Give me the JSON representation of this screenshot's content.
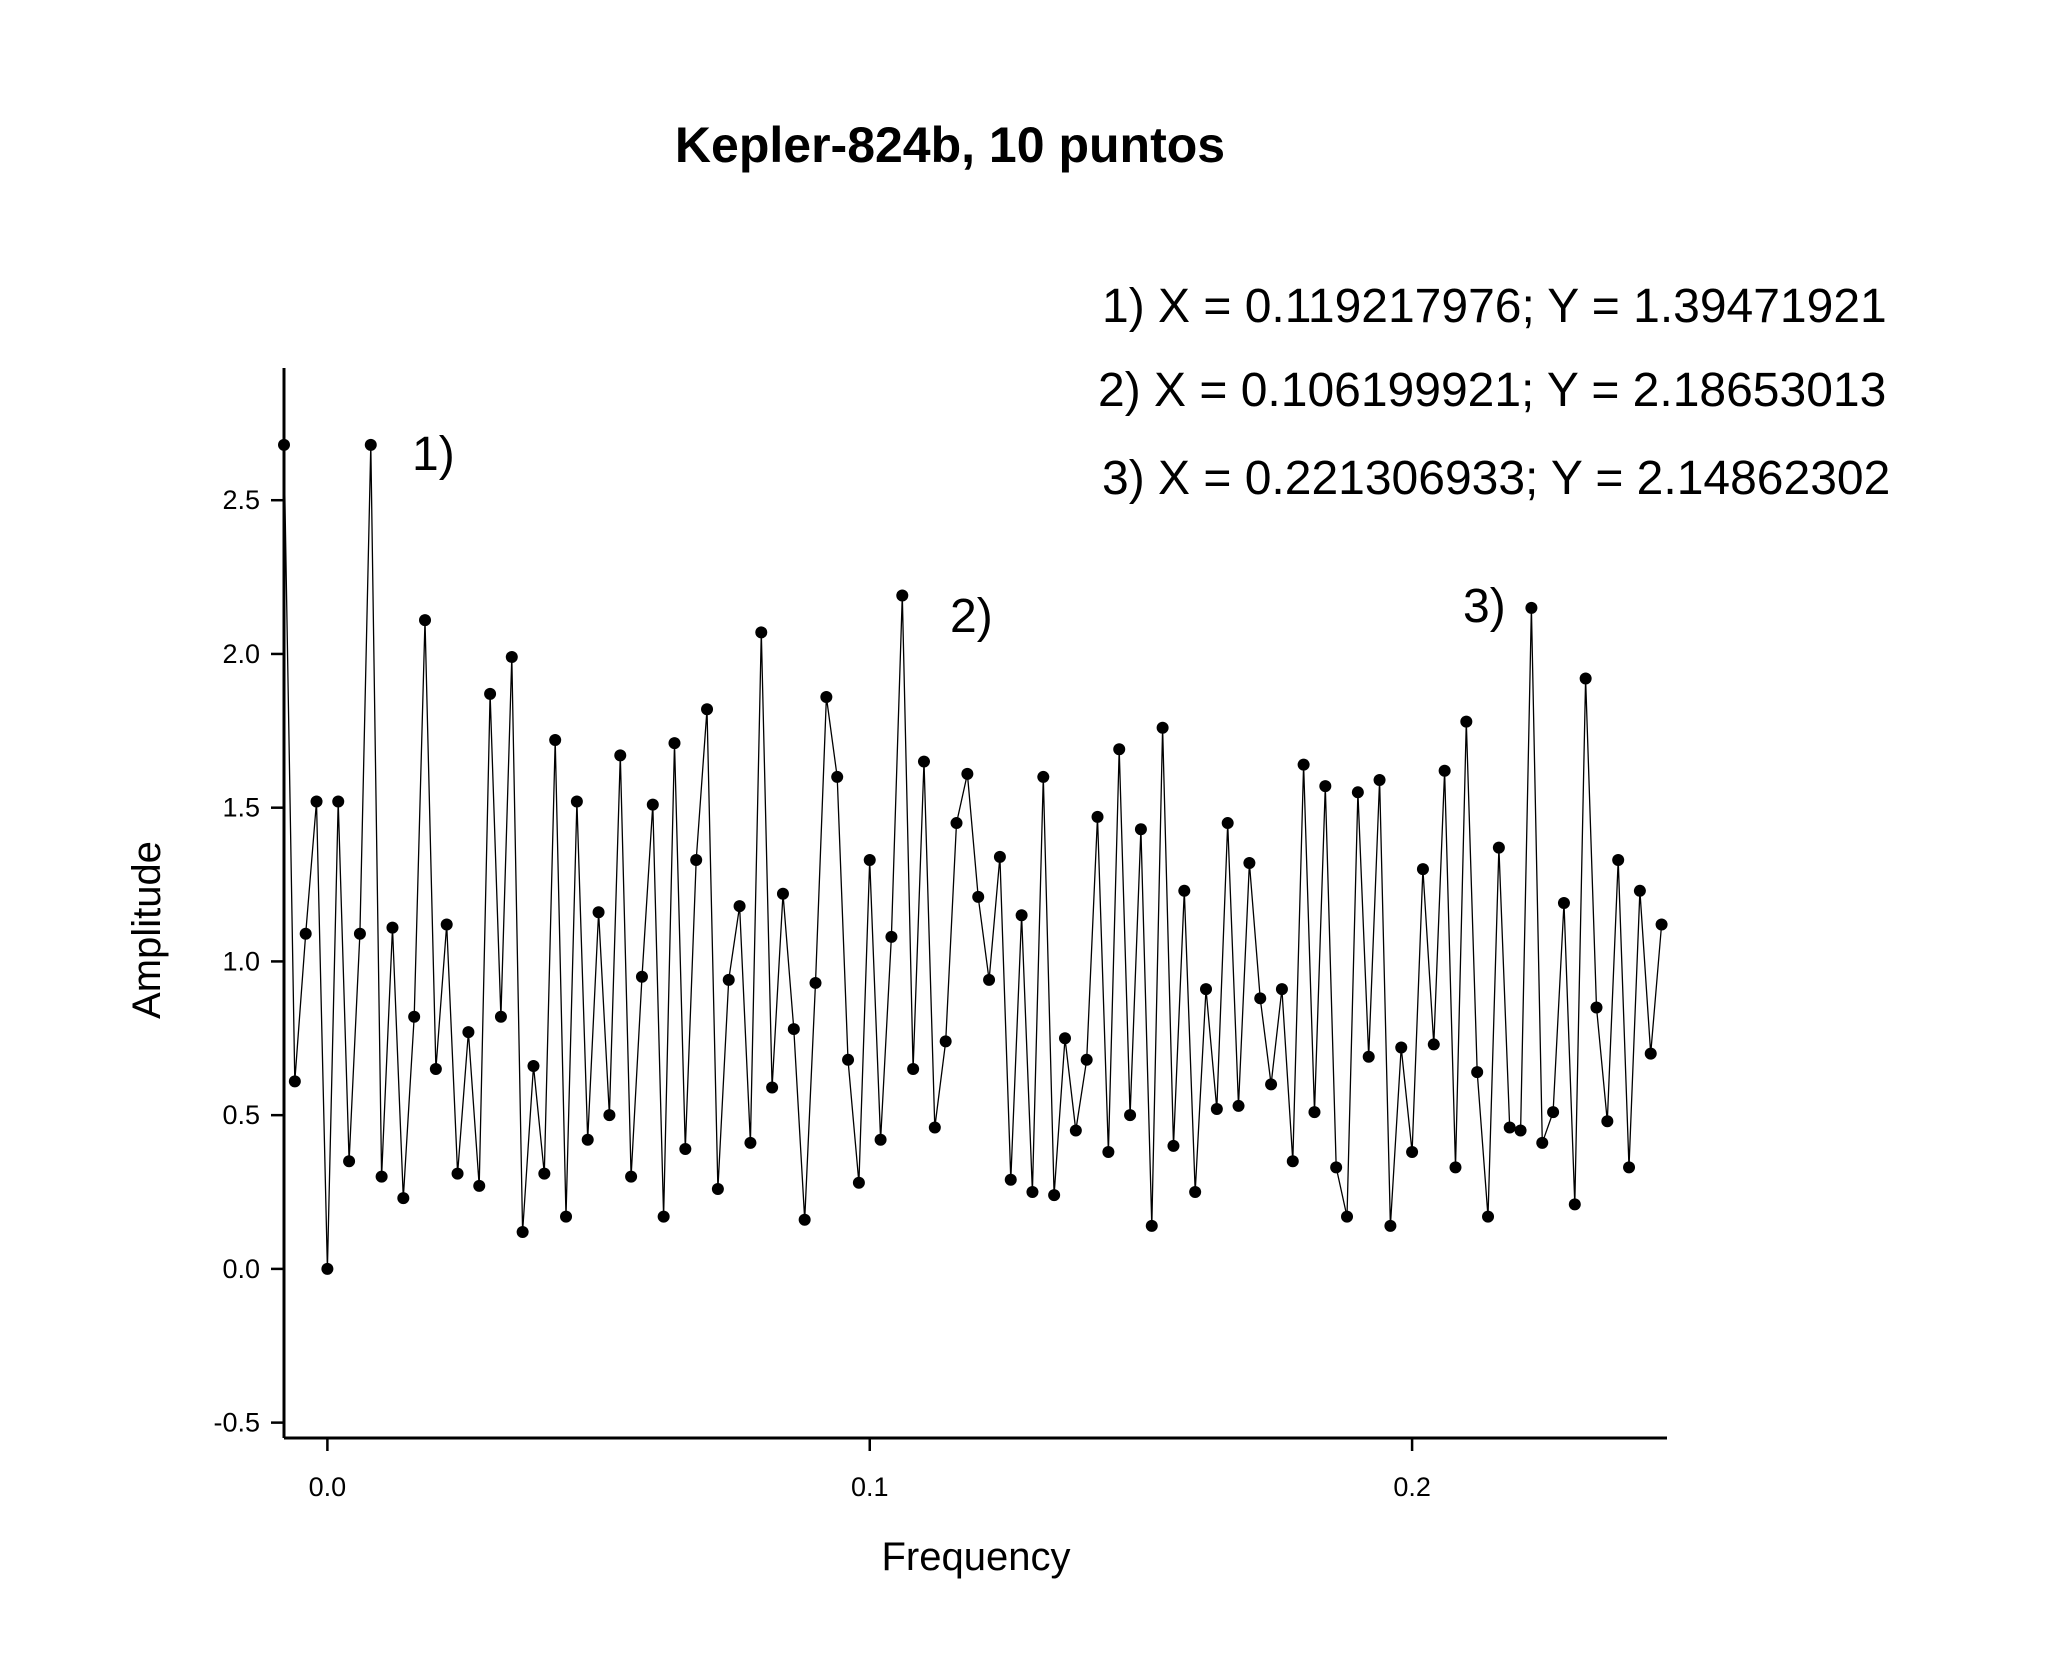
{
  "chart_data": {
    "type": "line",
    "title": "Kepler-824b, 10 puntos",
    "x_label": "Frequency",
    "y_label": "Amplitude",
    "annotations": [
      "1)  X = 0.119217976; Y = 1.39471921",
      "2) X = 0.106199921; Y = 2.18653013",
      "3)  X = 0.221306933; Y = 2.14862302",
      "1)",
      "2)",
      "3)"
    ],
    "color": "#000000",
    "markers": true,
    "xlim": [
      -0.008,
      0.247
    ],
    "ylim": [
      -0.55,
      2.93
    ],
    "xticks": [
      {
        "value": 0,
        "label": "0.0"
      },
      0.1,
      0.2
    ],
    "yticks": [
      -0.5,
      {
        "value": 0,
        "label": "0.0"
      },
      0.5,
      {
        "value": 1,
        "label": "1.0"
      },
      1.5,
      {
        "value": 2,
        "label": "2.0"
      },
      2.5
    ],
    "x": [
      -0.008,
      -0.006,
      -0.004,
      -0.002,
      0,
      0.002,
      0.004,
      0.006,
      0.008,
      0.01,
      0.012,
      0.014,
      0.016,
      0.018,
      0.02,
      0.022,
      0.024,
      0.026,
      0.028,
      0.03,
      0.032,
      0.034,
      0.036,
      0.038,
      0.04,
      0.042,
      0.044,
      0.046,
      0.048,
      0.05,
      0.052,
      0.054,
      0.056,
      0.058,
      0.06,
      0.062,
      0.064,
      0.066,
      0.068,
      0.07,
      0.072,
      0.074,
      0.076,
      0.078,
      0.08,
      0.082,
      0.084,
      0.086,
      0.088,
      0.09,
      0.092,
      0.094,
      0.096,
      0.098,
      0.1,
      0.102,
      0.104,
      0.106,
      0.108,
      0.11,
      0.112,
      0.114,
      0.116,
      0.118,
      0.12,
      0.122,
      0.124,
      0.126,
      0.128,
      0.13,
      0.132,
      0.134,
      0.136,
      0.138,
      0.14,
      0.142,
      0.144,
      0.146,
      0.148,
      0.15,
      0.152,
      0.154,
      0.156,
      0.158,
      0.16,
      0.162,
      0.164,
      0.166,
      0.168,
      0.17,
      0.172,
      0.174,
      0.176,
      0.178,
      0.18,
      0.182,
      0.184,
      0.186,
      0.188,
      0.19,
      0.192,
      0.194,
      0.196,
      0.198,
      0.2,
      0.202,
      0.204,
      0.206,
      0.208,
      0.21,
      0.212,
      0.214,
      0.216,
      0.218,
      0.22,
      0.222,
      0.224,
      0.226,
      0.228,
      0.23,
      0.232,
      0.234,
      0.236,
      0.238,
      0.24,
      0.242,
      0.244,
      0.246
    ],
    "values": [
      2.68,
      0.61,
      1.09,
      1.52,
      0,
      1.52,
      0.35,
      1.09,
      2.68,
      0.3,
      1.11,
      0.23,
      0.82,
      2.11,
      0.65,
      1.12,
      0.31,
      0.77,
      0.27,
      1.87,
      0.82,
      1.99,
      0.12,
      0.66,
      0.31,
      1.72,
      0.17,
      1.52,
      0.42,
      1.16,
      0.5,
      1.67,
      0.3,
      0.95,
      1.51,
      0.17,
      1.71,
      0.39,
      1.33,
      1.82,
      0.26,
      0.94,
      1.18,
      0.41,
      2.07,
      0.59,
      1.22,
      0.78,
      0.16,
      0.93,
      1.86,
      1.6,
      0.68,
      0.28,
      1.33,
      0.42,
      1.08,
      2.19,
      0.65,
      1.65,
      0.46,
      0.74,
      1.45,
      1.61,
      1.21,
      0.94,
      1.34,
      0.29,
      1.15,
      0.25,
      1.6,
      0.24,
      0.75,
      0.45,
      0.68,
      1.47,
      0.38,
      1.69,
      0.5,
      1.43,
      0.14,
      1.76,
      0.4,
      1.23,
      0.25,
      0.91,
      0.52,
      1.45,
      0.53,
      1.32,
      0.88,
      0.6,
      0.91,
      0.35,
      1.64,
      0.51,
      1.57,
      0.33,
      0.17,
      1.55,
      0.69,
      1.59,
      0.14,
      0.72,
      0.38,
      1.3,
      0.73,
      1.62,
      0.33,
      1.78,
      0.64,
      0.17,
      1.37,
      0.46,
      0.45,
      2.15,
      0.41,
      0.51,
      1.19,
      0.21,
      1.92,
      0.85,
      0.48,
      1.33,
      0.33,
      1.23,
      0.7,
      1.12
    ]
  }
}
